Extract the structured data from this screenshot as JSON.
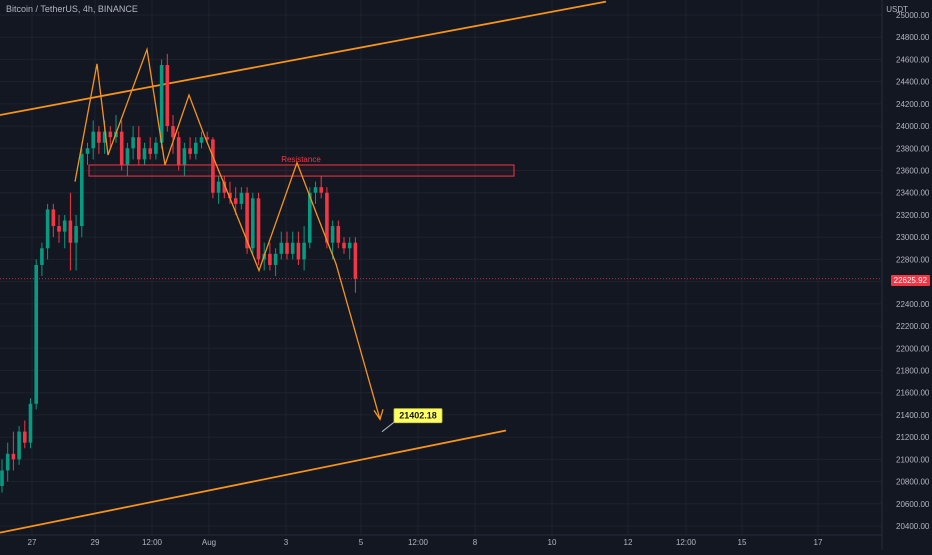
{
  "header": {
    "symbol_title": "Bitcoin / TetherUS, 4h, BINANCE",
    "currency": "USDT"
  },
  "price_axis": {
    "ticks": [
      "25000.00",
      "24800.00",
      "24600.00",
      "24400.00",
      "24200.00",
      "24000.00",
      "23800.00",
      "23600.00",
      "23400.00",
      "23200.00",
      "23000.00",
      "22800.00",
      "22600.00",
      "22400.00",
      "22200.00",
      "22000.00",
      "21800.00",
      "21600.00",
      "21400.00",
      "21200.00",
      "21000.00",
      "20800.00",
      "20600.00",
      "20400.00"
    ],
    "last_price": "22625.92"
  },
  "time_axis": {
    "labels": [
      "27",
      "29",
      "12:00",
      "Aug",
      "3",
      "5",
      "12:00",
      "8",
      "10",
      "12",
      "12:00",
      "15",
      "17"
    ]
  },
  "annotations": {
    "resistance_label": "Resistance",
    "target_label": "21402.18"
  },
  "colors": {
    "background": "#131722",
    "up": "#089981",
    "down": "#f23645",
    "trendline": "#f7931a",
    "resistance": "#f23645",
    "target_bg": "#ffff66"
  },
  "chart_data": {
    "type": "candlestick",
    "ylim": [
      20350,
      25100
    ],
    "resistance_zone": [
      23550,
      23650
    ],
    "target_price": 21402.18,
    "last_price": 22625.92,
    "candles": [
      {
        "o": 20760,
        "h": 21000,
        "l": 20700,
        "c": 20900
      },
      {
        "o": 20900,
        "h": 21150,
        "l": 20800,
        "c": 21050
      },
      {
        "o": 21050,
        "h": 21250,
        "l": 20900,
        "c": 21000
      },
      {
        "o": 21000,
        "h": 21300,
        "l": 20950,
        "c": 21250
      },
      {
        "o": 21250,
        "h": 21350,
        "l": 21100,
        "c": 21150
      },
      {
        "o": 21150,
        "h": 21550,
        "l": 21100,
        "c": 21500
      },
      {
        "o": 21500,
        "h": 22800,
        "l": 21450,
        "c": 22750
      },
      {
        "o": 22750,
        "h": 22950,
        "l": 22650,
        "c": 22900
      },
      {
        "o": 22900,
        "h": 23300,
        "l": 22800,
        "c": 23250
      },
      {
        "o": 23250,
        "h": 23300,
        "l": 23000,
        "c": 23100
      },
      {
        "o": 23100,
        "h": 23200,
        "l": 22950,
        "c": 23050
      },
      {
        "o": 23050,
        "h": 23200,
        "l": 22900,
        "c": 23150
      },
      {
        "o": 23150,
        "h": 23400,
        "l": 22700,
        "c": 22950
      },
      {
        "o": 22950,
        "h": 23200,
        "l": 22700,
        "c": 23100
      },
      {
        "o": 23100,
        "h": 23800,
        "l": 23000,
        "c": 23750
      },
      {
        "o": 23750,
        "h": 23850,
        "l": 23650,
        "c": 23800
      },
      {
        "o": 23800,
        "h": 24050,
        "l": 23700,
        "c": 23950
      },
      {
        "o": 23950,
        "h": 24000,
        "l": 23750,
        "c": 23850
      },
      {
        "o": 23850,
        "h": 24050,
        "l": 23750,
        "c": 23950
      },
      {
        "o": 23950,
        "h": 24000,
        "l": 23800,
        "c": 23900
      },
      {
        "o": 23900,
        "h": 24100,
        "l": 23850,
        "c": 23950
      },
      {
        "o": 23950,
        "h": 24050,
        "l": 23600,
        "c": 23650
      },
      {
        "o": 23650,
        "h": 23850,
        "l": 23550,
        "c": 23800
      },
      {
        "o": 23800,
        "h": 24000,
        "l": 23700,
        "c": 23900
      },
      {
        "o": 23900,
        "h": 24000,
        "l": 23650,
        "c": 23700
      },
      {
        "o": 23700,
        "h": 23850,
        "l": 23650,
        "c": 23800
      },
      {
        "o": 23800,
        "h": 23900,
        "l": 23700,
        "c": 23750
      },
      {
        "o": 23750,
        "h": 23900,
        "l": 23700,
        "c": 23850
      },
      {
        "o": 23850,
        "h": 24600,
        "l": 23800,
        "c": 24550
      },
      {
        "o": 24550,
        "h": 24650,
        "l": 23950,
        "c": 24000
      },
      {
        "o": 24000,
        "h": 24100,
        "l": 23750,
        "c": 23900
      },
      {
        "o": 23900,
        "h": 23950,
        "l": 23600,
        "c": 23650
      },
      {
        "o": 23650,
        "h": 23850,
        "l": 23550,
        "c": 23800
      },
      {
        "o": 23800,
        "h": 23900,
        "l": 23700,
        "c": 23750
      },
      {
        "o": 23750,
        "h": 23900,
        "l": 23700,
        "c": 23850
      },
      {
        "o": 23850,
        "h": 23950,
        "l": 23800,
        "c": 23900
      },
      {
        "o": 23900,
        "h": 23950,
        "l": 23850,
        "c": 23880
      },
      {
        "o": 23880,
        "h": 23900,
        "l": 23350,
        "c": 23400
      },
      {
        "o": 23400,
        "h": 23550,
        "l": 23300,
        "c": 23500
      },
      {
        "o": 23500,
        "h": 23550,
        "l": 23350,
        "c": 23400
      },
      {
        "o": 23400,
        "h": 23500,
        "l": 23300,
        "c": 23350
      },
      {
        "o": 23350,
        "h": 23450,
        "l": 23200,
        "c": 23300
      },
      {
        "o": 23300,
        "h": 23450,
        "l": 23250,
        "c": 23400
      },
      {
        "o": 23400,
        "h": 23450,
        "l": 22850,
        "c": 22900
      },
      {
        "o": 22900,
        "h": 23400,
        "l": 22850,
        "c": 23350
      },
      {
        "o": 23350,
        "h": 23400,
        "l": 22750,
        "c": 22800
      },
      {
        "o": 22800,
        "h": 22950,
        "l": 22700,
        "c": 22850
      },
      {
        "o": 22850,
        "h": 22950,
        "l": 22700,
        "c": 22750
      },
      {
        "o": 22750,
        "h": 22900,
        "l": 22650,
        "c": 22850
      },
      {
        "o": 22850,
        "h": 23050,
        "l": 22800,
        "c": 22950
      },
      {
        "o": 22950,
        "h": 23050,
        "l": 22800,
        "c": 22850
      },
      {
        "o": 22850,
        "h": 23050,
        "l": 22800,
        "c": 22950
      },
      {
        "o": 22950,
        "h": 23050,
        "l": 22750,
        "c": 22800
      },
      {
        "o": 22800,
        "h": 23100,
        "l": 22700,
        "c": 22950
      },
      {
        "o": 22950,
        "h": 23450,
        "l": 22900,
        "c": 23400
      },
      {
        "o": 23400,
        "h": 23500,
        "l": 23300,
        "c": 23450
      },
      {
        "o": 23450,
        "h": 23550,
        "l": 23350,
        "c": 23400
      },
      {
        "o": 23400,
        "h": 23450,
        "l": 22900,
        "c": 22950
      },
      {
        "o": 22950,
        "h": 23150,
        "l": 22800,
        "c": 23100
      },
      {
        "o": 23100,
        "h": 23150,
        "l": 22900,
        "c": 22950
      },
      {
        "o": 22950,
        "h": 23000,
        "l": 22850,
        "c": 22900
      },
      {
        "o": 22900,
        "h": 23000,
        "l": 22800,
        "c": 22950
      },
      {
        "o": 22950,
        "h": 23000,
        "l": 22500,
        "c": 22626
      }
    ]
  }
}
